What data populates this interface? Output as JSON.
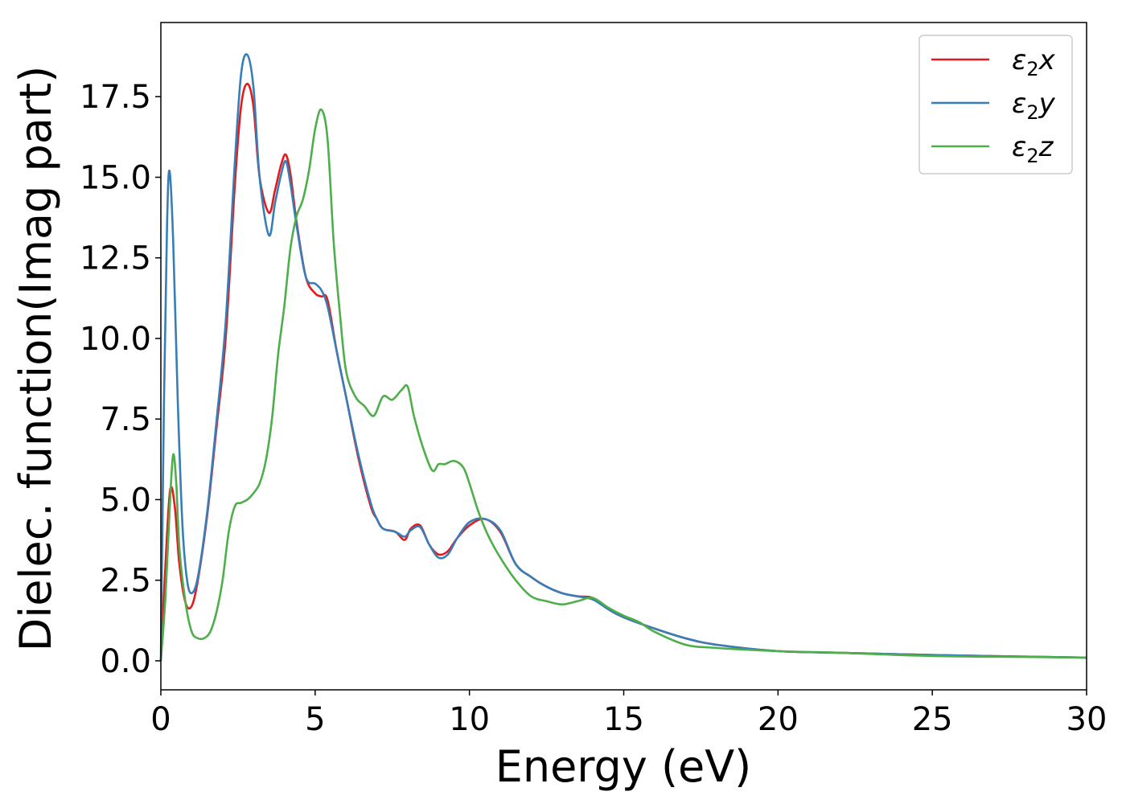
{
  "chart_data": {
    "type": "line",
    "title": "",
    "xlabel": "Energy (eV)",
    "ylabel": "Dielec. function(Imag part)",
    "xlim": [
      0,
      30
    ],
    "ylim": [
      -0.9,
      19.8
    ],
    "xticks": [
      0,
      5,
      10,
      15,
      20,
      25,
      30
    ],
    "xtick_labels": [
      "0",
      "5",
      "10",
      "15",
      "20",
      "25",
      "30"
    ],
    "yticks": [
      0.0,
      2.5,
      5.0,
      7.5,
      10.0,
      12.5,
      15.0,
      17.5
    ],
    "ytick_labels": [
      "0.0",
      "2.5",
      "5.0",
      "7.5",
      "10.0",
      "12.5",
      "15.0",
      "17.5"
    ],
    "grid": false,
    "legend_position": "top-right",
    "series": [
      {
        "name": "ε₂x",
        "legend_main": "ε",
        "legend_sub": "2",
        "legend_suffix": "x",
        "color": "#e41a1c",
        "x": [
          0,
          0.15,
          0.3,
          0.45,
          0.6,
          0.8,
          1.0,
          1.2,
          1.5,
          1.8,
          2.1,
          2.4,
          2.6,
          2.8,
          3.0,
          3.2,
          3.5,
          3.7,
          3.9,
          4.05,
          4.2,
          4.4,
          4.7,
          5.0,
          5.2,
          5.4,
          5.7,
          6.0,
          6.4,
          6.8,
          7.0,
          7.2,
          7.6,
          7.9,
          8.1,
          8.4,
          8.7,
          9.0,
          9.3,
          9.6,
          10.0,
          10.5,
          11.0,
          11.5,
          12.0,
          12.5,
          13.0,
          13.5,
          14.0,
          14.5,
          15.0,
          16.0,
          17.0,
          18.0,
          20.0,
          22.0,
          25.0,
          28.0,
          30.0
        ],
        "y": [
          0,
          3.0,
          5.3,
          4.8,
          3.0,
          1.8,
          1.7,
          2.5,
          4.5,
          7.2,
          10.0,
          14.8,
          17.2,
          17.9,
          17.2,
          15.0,
          13.9,
          14.6,
          15.4,
          15.7,
          15.1,
          13.6,
          11.9,
          11.4,
          11.3,
          11.2,
          9.6,
          8.2,
          6.3,
          4.8,
          4.4,
          4.1,
          4.0,
          3.75,
          4.1,
          4.2,
          3.6,
          3.3,
          3.4,
          3.8,
          4.2,
          4.4,
          4.0,
          3.0,
          2.6,
          2.3,
          2.1,
          2.0,
          1.95,
          1.6,
          1.35,
          1.0,
          0.7,
          0.5,
          0.3,
          0.25,
          0.18,
          0.13,
          0.1
        ]
      },
      {
        "name": "ε₂y",
        "legend_main": "ε",
        "legend_sub": "2",
        "legend_suffix": "y",
        "color": "#377eb8",
        "x": [
          0,
          0.1,
          0.2,
          0.28,
          0.4,
          0.55,
          0.7,
          0.85,
          1.0,
          1.2,
          1.5,
          1.8,
          2.1,
          2.4,
          2.6,
          2.8,
          3.0,
          3.2,
          3.5,
          3.7,
          3.9,
          4.05,
          4.2,
          4.4,
          4.7,
          5.0,
          5.2,
          5.4,
          5.7,
          6.0,
          6.4,
          6.8,
          7.0,
          7.2,
          7.6,
          7.9,
          8.1,
          8.4,
          8.7,
          9.0,
          9.3,
          9.6,
          10.0,
          10.5,
          11.0,
          11.5,
          12.0,
          12.5,
          13.0,
          13.5,
          14.0,
          14.5,
          15.0,
          16.0,
          17.0,
          18.0,
          20.0,
          22.0,
          25.0,
          28.0,
          30.0
        ],
        "y": [
          0,
          8.0,
          13.5,
          15.2,
          13.0,
          8.0,
          4.2,
          2.5,
          2.1,
          2.6,
          4.6,
          7.4,
          10.5,
          15.5,
          18.2,
          18.8,
          17.8,
          15.0,
          13.2,
          14.2,
          15.1,
          15.5,
          14.8,
          13.5,
          11.9,
          11.7,
          11.5,
          11.0,
          9.6,
          8.2,
          6.4,
          4.9,
          4.4,
          4.1,
          4.0,
          3.85,
          4.05,
          4.15,
          3.6,
          3.2,
          3.3,
          3.8,
          4.3,
          4.4,
          4.05,
          3.0,
          2.6,
          2.3,
          2.1,
          2.0,
          1.9,
          1.6,
          1.35,
          1.0,
          0.7,
          0.5,
          0.3,
          0.25,
          0.18,
          0.13,
          0.1
        ]
      },
      {
        "name": "ε₂z",
        "legend_main": "ε",
        "legend_sub": "2",
        "legend_suffix": "z",
        "color": "#4daf4a",
        "x": [
          0,
          0.15,
          0.3,
          0.4,
          0.5,
          0.6,
          0.8,
          1.0,
          1.2,
          1.4,
          1.6,
          1.8,
          2.0,
          2.2,
          2.4,
          2.6,
          2.8,
          3.0,
          3.2,
          3.4,
          3.6,
          3.8,
          4.0,
          4.2,
          4.4,
          4.6,
          4.8,
          5.0,
          5.2,
          5.4,
          5.6,
          5.8,
          6.0,
          6.3,
          6.6,
          6.9,
          7.2,
          7.5,
          7.8,
          8.0,
          8.2,
          8.5,
          8.8,
          9.0,
          9.2,
          9.5,
          9.8,
          10.0,
          10.3,
          10.6,
          11.0,
          11.5,
          12.0,
          12.5,
          13.0,
          13.5,
          14.0,
          14.5,
          15.0,
          15.5,
          16.0,
          17.0,
          18.0,
          20.0,
          22.0,
          25.0,
          28.0,
          30.0
        ],
        "y": [
          0,
          2.0,
          5.0,
          6.4,
          5.5,
          3.5,
          1.8,
          0.9,
          0.7,
          0.7,
          0.9,
          1.5,
          2.5,
          4.0,
          4.8,
          4.9,
          5.0,
          5.2,
          5.5,
          6.2,
          7.5,
          9.5,
          11.0,
          12.8,
          13.8,
          14.3,
          15.2,
          16.5,
          17.1,
          16.2,
          13.0,
          10.8,
          9.0,
          8.2,
          7.9,
          7.6,
          8.2,
          8.1,
          8.4,
          8.5,
          7.6,
          6.6,
          5.9,
          6.1,
          6.1,
          6.2,
          6.0,
          5.5,
          4.6,
          3.9,
          3.2,
          2.5,
          2.0,
          1.85,
          1.75,
          1.85,
          1.95,
          1.65,
          1.4,
          1.2,
          0.9,
          0.5,
          0.4,
          0.3,
          0.25,
          0.15,
          0.12,
          0.1
        ]
      }
    ]
  }
}
